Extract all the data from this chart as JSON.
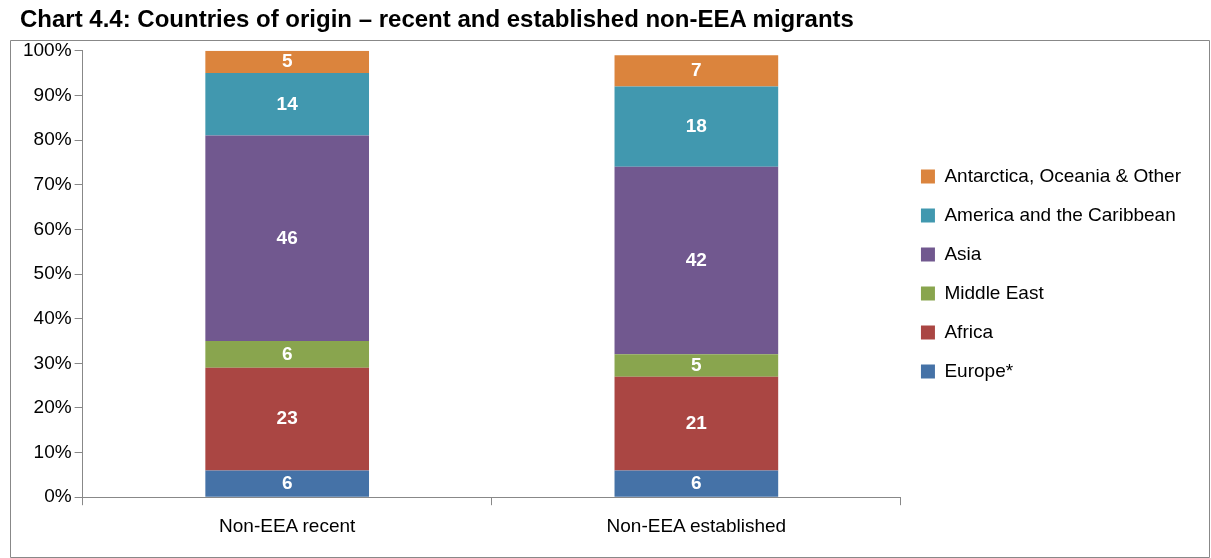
{
  "chart_data": {
    "type": "bar",
    "title": "Chart 4.4: Countries of origin – recent and established non-EEA migrants",
    "stacked": true,
    "categories": [
      "Non-EEA recent",
      "Non-EEA established"
    ],
    "series": [
      {
        "name": "Europe*",
        "color": "#4572a7",
        "values": [
          6,
          6
        ]
      },
      {
        "name": "Africa",
        "color": "#aa4643",
        "values": [
          23,
          21
        ]
      },
      {
        "name": "Middle East",
        "color": "#89a54e",
        "values": [
          6,
          5
        ]
      },
      {
        "name": "Asia",
        "color": "#71588f",
        "values": [
          46,
          42
        ]
      },
      {
        "name": "America and the Caribbean",
        "color": "#4198af",
        "values": [
          14,
          18
        ]
      },
      {
        "name": "Antarctica, Oceania & Other",
        "color": "#db843d",
        "values": [
          5,
          7
        ]
      }
    ],
    "ylim": [
      0,
      100
    ],
    "yticks": [
      {
        "value": 0,
        "label": "0%"
      },
      {
        "value": 10,
        "label": "10%"
      },
      {
        "value": 20,
        "label": "20%"
      },
      {
        "value": 30,
        "label": "30%"
      },
      {
        "value": 40,
        "label": "40%"
      },
      {
        "value": 50,
        "label": "50%"
      },
      {
        "value": 60,
        "label": "60%"
      },
      {
        "value": 70,
        "label": "70%"
      },
      {
        "value": 80,
        "label": "80%"
      },
      {
        "value": 90,
        "label": "90%"
      },
      {
        "value": 100,
        "label": "100%"
      }
    ],
    "data_labels": true,
    "legend": "right",
    "grid": false
  }
}
